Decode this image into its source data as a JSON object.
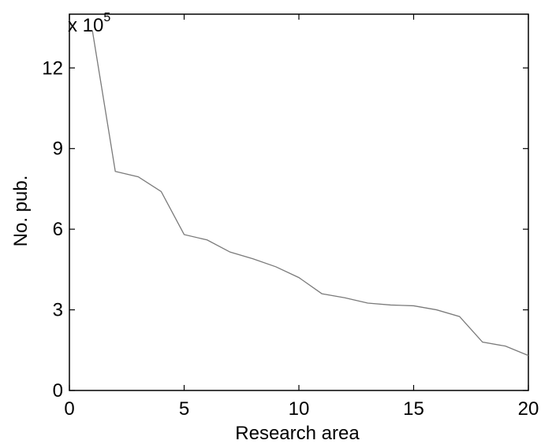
{
  "chart_data": {
    "type": "line",
    "title": "",
    "xlabel": "Research area",
    "ylabel": "No. pub.",
    "y_multiplier": {
      "base": "x 10",
      "exponent": "5"
    },
    "xlim": [
      0,
      20
    ],
    "ylim": [
      0,
      14
    ],
    "x_ticks": [
      0,
      5,
      10,
      15,
      20
    ],
    "y_ticks": [
      0,
      3,
      6,
      9,
      12
    ],
    "grid": false,
    "series": [
      {
        "color": "#7a7a7a",
        "x": [
          1,
          2,
          3,
          4,
          5,
          6,
          7,
          8,
          9,
          10,
          11,
          12,
          13,
          14,
          15,
          16,
          17,
          18,
          19,
          20
        ],
        "y": [
          13.4,
          8.15,
          7.95,
          7.4,
          5.8,
          5.6,
          5.15,
          4.9,
          4.6,
          4.2,
          3.6,
          3.45,
          3.25,
          3.18,
          3.15,
          3.0,
          2.75,
          1.8,
          1.65,
          1.3
        ]
      }
    ]
  }
}
